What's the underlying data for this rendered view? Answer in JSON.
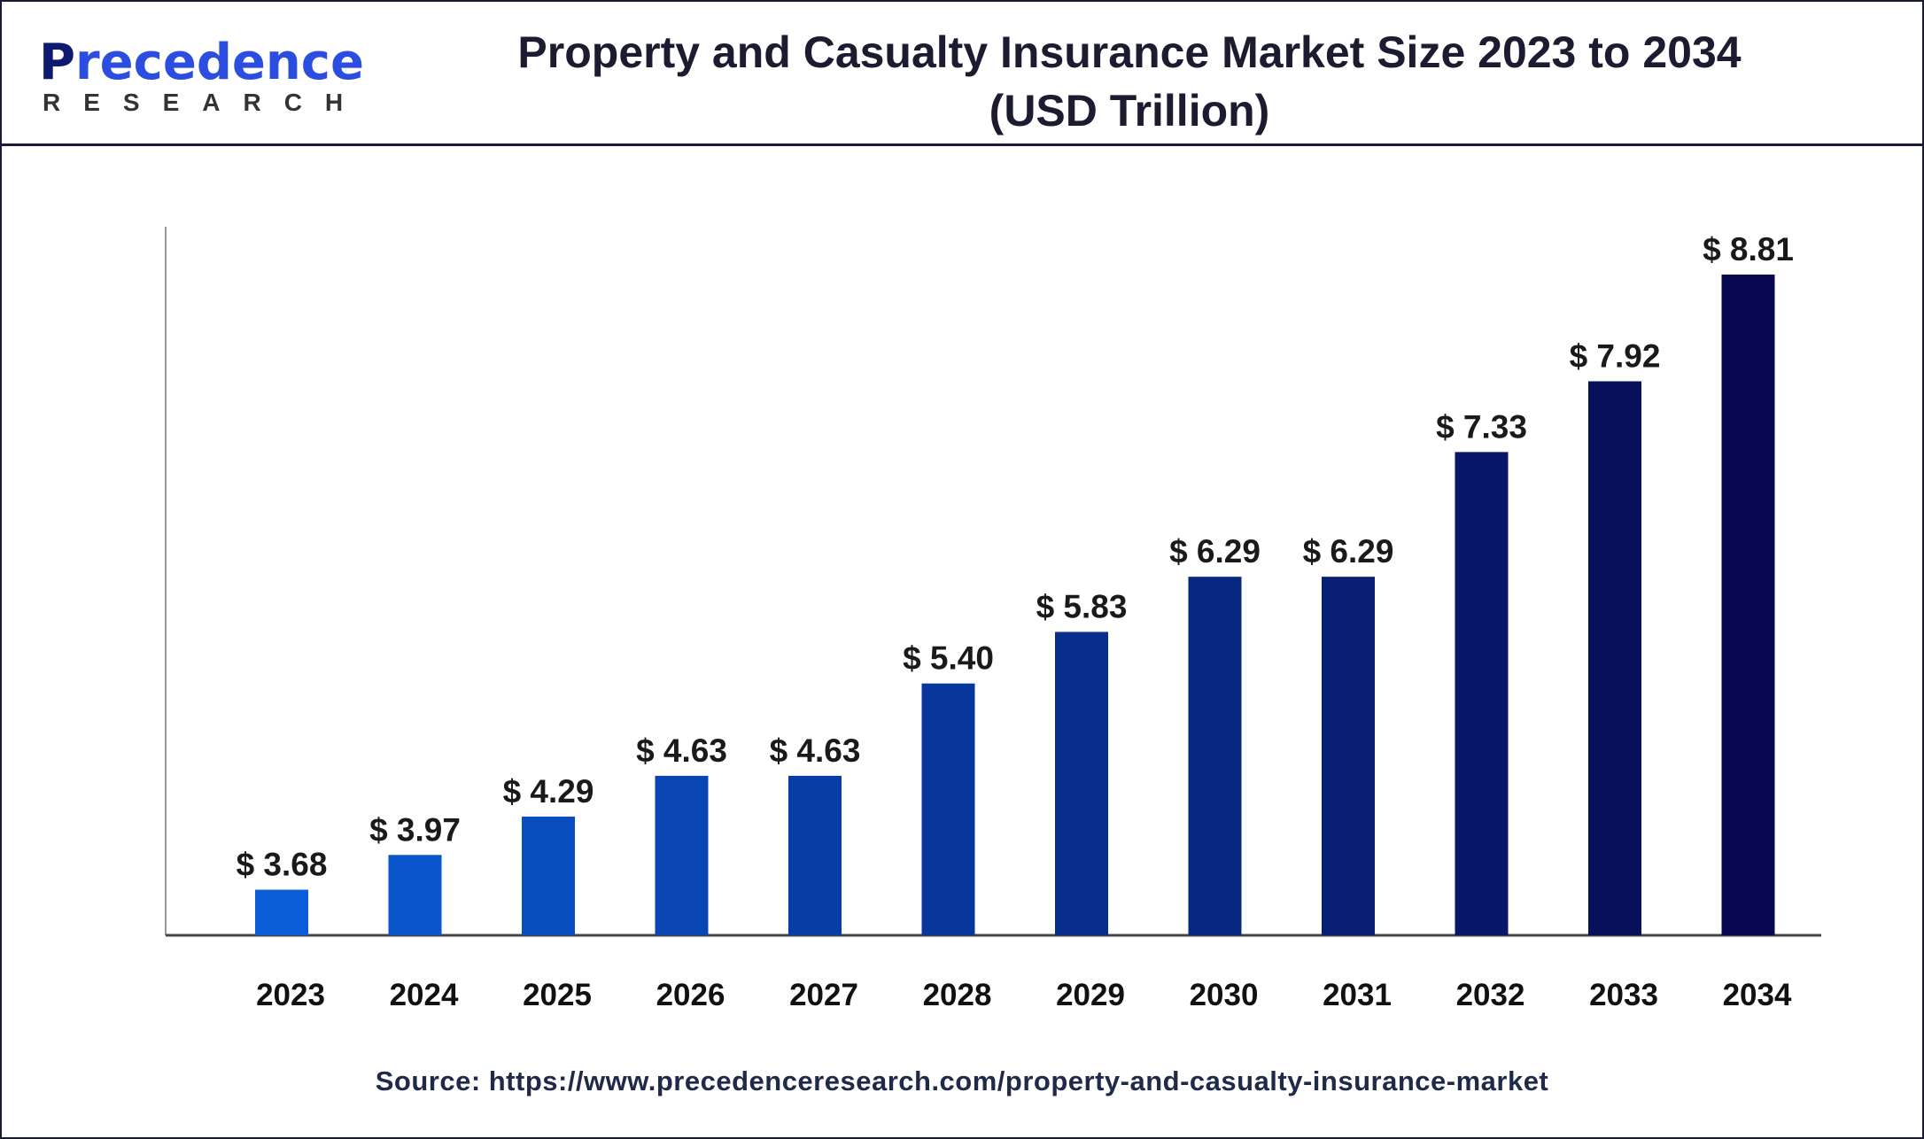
{
  "logo": {
    "text": "Precedence",
    "subtext": "RESEARCH"
  },
  "header": {
    "title_line1": "Property and Casualty Insurance Market Size 2023 to 2034",
    "title_line2": "(USD Trillion)"
  },
  "source": "Source: https://www.precedenceresearch.com/property-and-casualty-insurance-market",
  "colors": {
    "bar_start": "#0a5cd8",
    "bar_end": "#07084f",
    "axis": "#444444"
  },
  "chart_data": {
    "type": "bar",
    "title": "Property and Casualty Insurance Market Size 2023 to 2034 (USD Trillion)",
    "categories": [
      "2023",
      "2024",
      "2025",
      "2026",
      "2027",
      "2028",
      "2029",
      "2030",
      "2031",
      "2032",
      "2033",
      "2034"
    ],
    "values": [
      3.68,
      3.97,
      4.29,
      4.63,
      4.63,
      5.4,
      5.83,
      6.29,
      6.29,
      7.33,
      7.92,
      8.81
    ],
    "data_labels": [
      "$ 3.68",
      "$ 3.97",
      "$ 4.29",
      "$ 4.63",
      "$ 4.63",
      "$ 5.40",
      "$ 5.83",
      "$ 6.29",
      "$ 6.29",
      "$ 7.33",
      "$ 7.92",
      "$ 8.81"
    ],
    "xlabel": "",
    "ylabel": "",
    "grid": false,
    "legend": "none"
  }
}
